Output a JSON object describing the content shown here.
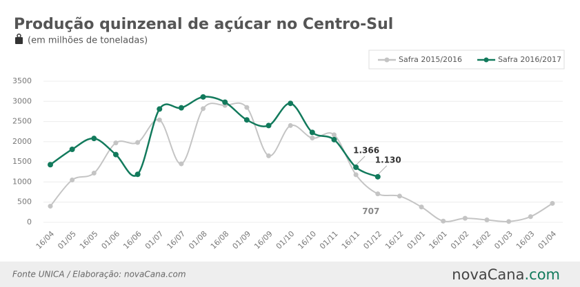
{
  "chart_data": {
    "type": "line",
    "title": "Produção quinzenal de açúcar no Centro-Sul",
    "subtitle": "(em milhões de toneladas)",
    "categories": [
      "16/04",
      "01/05",
      "16/05",
      "01/06",
      "16/06",
      "01/07",
      "16/07",
      "01/08",
      "16/08",
      "01/09",
      "16/09",
      "01/10",
      "16/10",
      "01/11",
      "16/11",
      "01/12",
      "16/12",
      "01/01",
      "16/01",
      "01/02",
      "16/02",
      "01/03",
      "16/03",
      "01/04"
    ],
    "series": [
      {
        "name": "Safra 2015/2016",
        "color": "#c4c4c4",
        "values": [
          400,
          1050,
          1220,
          1970,
          1980,
          2540,
          1450,
          2820,
          2900,
          2850,
          1650,
          2400,
          2090,
          2170,
          1180,
          707,
          650,
          380,
          30,
          100,
          60,
          20,
          140,
          470
        ],
        "value_labels": [
          null,
          null,
          null,
          null,
          null,
          null,
          null,
          null,
          null,
          null,
          null,
          null,
          null,
          null,
          null,
          "707",
          null,
          null,
          null,
          null,
          null,
          null,
          null,
          null
        ]
      },
      {
        "name": "Safra 2016/2017",
        "color": "#127a5c",
        "values": [
          1430,
          1810,
          2080,
          1680,
          1190,
          2810,
          2840,
          3110,
          2980,
          2540,
          2400,
          2950,
          2230,
          2050,
          1366,
          1130,
          null,
          null,
          null,
          null,
          null,
          null,
          null,
          null
        ],
        "value_labels": [
          null,
          null,
          null,
          null,
          null,
          null,
          null,
          null,
          null,
          null,
          null,
          null,
          null,
          null,
          "1.366",
          "1.130",
          null,
          null,
          null,
          null,
          null,
          null,
          null,
          null
        ]
      }
    ],
    "ylim": [
      0,
      3500
    ],
    "yticks": [
      0,
      500,
      1000,
      1500,
      2000,
      2500,
      3000,
      3500
    ],
    "grid": true,
    "legend": "top-right",
    "source": "Fonte UNICA / Elaboração: novaCana.com",
    "logo": {
      "name": "novaCana",
      "suffix": ".com"
    }
  }
}
